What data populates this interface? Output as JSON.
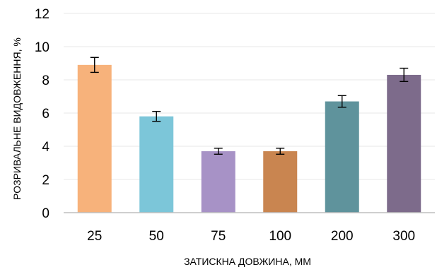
{
  "chart_data": {
    "type": "bar",
    "title": "",
    "xlabel": "ЗАТИСКНА ДОВЖИНА, ММ",
    "ylabel": "РОЗРИВАЛЬНЕ ВИДОВЖЕННЯ, %",
    "categories": [
      "25",
      "50",
      "75",
      "100",
      "200",
      "300"
    ],
    "values": [
      8.9,
      5.8,
      3.7,
      3.7,
      6.7,
      8.3
    ],
    "error": [
      0.45,
      0.3,
      0.18,
      0.18,
      0.35,
      0.4
    ],
    "colors": [
      "#f7b27b",
      "#7cc6d9",
      "#a792c6",
      "#c98550",
      "#5f939c",
      "#7d6b8b"
    ],
    "ylim": [
      0,
      12
    ],
    "yticks": [
      0,
      2,
      4,
      6,
      8,
      10,
      12
    ],
    "grid": true,
    "legend": "none"
  }
}
